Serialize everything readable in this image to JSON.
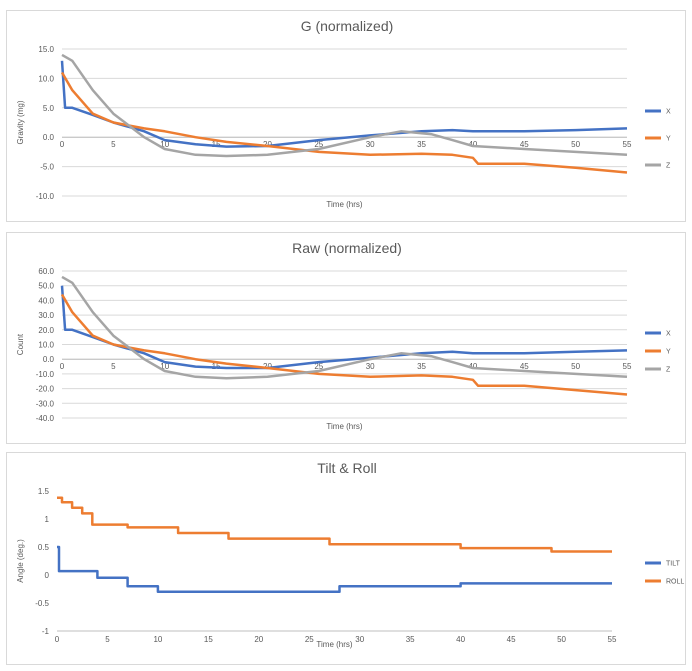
{
  "chart_data": [
    {
      "type": "line",
      "title": "G (normalized)",
      "xlabel": "Time (hrs)",
      "ylabel": "Gravity (mg)",
      "xlim": [
        0,
        55
      ],
      "ylim": [
        -10,
        15
      ],
      "xticks": [
        "0",
        "5",
        "10",
        "15",
        "20",
        "25",
        "30",
        "35",
        "40",
        "45",
        "50",
        "55"
      ],
      "yticks": [
        "15.0",
        "10.0",
        "5.0",
        "0.0",
        "-5.0",
        "-10.0"
      ],
      "grid": true,
      "legend": "right",
      "series": [
        {
          "name": "X",
          "color": "#4472C4",
          "x": [
            0,
            0.3,
            1,
            3,
            5,
            8,
            10,
            13,
            16,
            20,
            25,
            30,
            35,
            38,
            40,
            45,
            50,
            55
          ],
          "y": [
            13,
            5,
            5,
            3.8,
            2.5,
            1,
            -0.5,
            -1.2,
            -1.6,
            -1.5,
            -0.5,
            0.3,
            1,
            1.2,
            1,
            1,
            1.2,
            1.5
          ]
        },
        {
          "name": "Y",
          "color": "#ED7D31",
          "x": [
            0,
            1,
            3,
            5,
            8,
            10,
            13,
            16,
            20,
            25,
            30,
            35,
            38,
            40,
            40.5,
            45,
            50,
            55
          ],
          "y": [
            11,
            8,
            4,
            2.5,
            1.5,
            1,
            0,
            -0.8,
            -1.5,
            -2.5,
            -3,
            -2.8,
            -3,
            -3.5,
            -4.5,
            -4.5,
            -5.2,
            -6
          ]
        },
        {
          "name": "Z",
          "color": "#A5A5A5",
          "x": [
            0,
            1,
            3,
            5,
            8,
            10,
            13,
            16,
            20,
            25,
            30,
            33,
            36,
            38,
            40,
            45,
            50,
            55
          ],
          "y": [
            14,
            13,
            8,
            4,
            0,
            -2,
            -3,
            -3.2,
            -3,
            -2,
            0,
            1,
            0.5,
            -0.5,
            -1.5,
            -2,
            -2.5,
            -3
          ]
        }
      ]
    },
    {
      "type": "line",
      "title": "Raw (normalized)",
      "xlabel": "Time (hrs)",
      "ylabel": "Count",
      "xlim": [
        0,
        55
      ],
      "ylim": [
        -40,
        60
      ],
      "xticks": [
        "0",
        "5",
        "10",
        "15",
        "20",
        "25",
        "30",
        "35",
        "40",
        "45",
        "50",
        "55"
      ],
      "yticks": [
        "60.0",
        "50.0",
        "40.0",
        "30.0",
        "20.0",
        "10.0",
        "0.0",
        "-10.0",
        "-20.0",
        "-30.0",
        "-40.0"
      ],
      "grid": true,
      "legend": "right",
      "series": [
        {
          "name": "X",
          "color": "#4472C4",
          "x": [
            0,
            0.3,
            1,
            3,
            5,
            8,
            10,
            13,
            16,
            20,
            25,
            30,
            35,
            38,
            40,
            45,
            50,
            55
          ],
          "y": [
            50,
            20,
            20,
            15,
            10,
            4,
            -2,
            -5,
            -6,
            -6,
            -2,
            1,
            4,
            5,
            4,
            4,
            5,
            6
          ]
        },
        {
          "name": "Y",
          "color": "#ED7D31",
          "x": [
            0,
            1,
            3,
            5,
            8,
            10,
            13,
            16,
            20,
            25,
            30,
            35,
            38,
            40,
            40.5,
            45,
            50,
            55
          ],
          "y": [
            44,
            32,
            16,
            10,
            6,
            4,
            0,
            -3,
            -6,
            -10,
            -12,
            -11,
            -12,
            -14,
            -18,
            -18,
            -21,
            -24
          ]
        },
        {
          "name": "Z",
          "color": "#A5A5A5",
          "x": [
            0,
            1,
            3,
            5,
            8,
            10,
            13,
            16,
            20,
            25,
            30,
            33,
            36,
            38,
            40,
            45,
            50,
            55
          ],
          "y": [
            56,
            52,
            32,
            16,
            0,
            -8,
            -12,
            -13,
            -12,
            -8,
            0,
            4,
            2,
            -2,
            -6,
            -8,
            -10,
            -12
          ]
        }
      ]
    },
    {
      "type": "line",
      "title": "Tilt & Roll",
      "xlabel": "Time (hrs)",
      "ylabel": "Angle (deg.)",
      "xlim": [
        0,
        55
      ],
      "ylim": [
        -1,
        1.5
      ],
      "xticks": [
        "0",
        "5",
        "10",
        "15",
        "20",
        "25",
        "30",
        "35",
        "40",
        "45",
        "50",
        "55"
      ],
      "yticks": [
        "1.5",
        "1",
        "0.5",
        "0",
        "-0.5",
        "-1"
      ],
      "grid": false,
      "legend": "right",
      "series": [
        {
          "name": "TILT",
          "color": "#4472C4",
          "x": [
            0,
            0.2,
            0.2,
            4,
            4,
            7,
            7,
            10,
            10,
            28,
            28,
            40,
            40,
            55
          ],
          "y": [
            0.5,
            0.5,
            0.07,
            0.07,
            -0.05,
            -0.05,
            -0.2,
            -0.2,
            -0.3,
            -0.3,
            -0.2,
            -0.2,
            -0.15,
            -0.15
          ]
        },
        {
          "name": "ROLL",
          "color": "#ED7D31",
          "x": [
            0,
            0.5,
            0.5,
            1.5,
            1.5,
            2.5,
            2.5,
            3.5,
            3.5,
            7,
            7,
            12,
            12,
            17,
            17,
            27,
            27,
            40,
            40,
            49,
            49,
            55
          ],
          "y": [
            1.38,
            1.38,
            1.3,
            1.3,
            1.2,
            1.2,
            1.1,
            1.1,
            0.9,
            0.9,
            0.85,
            0.85,
            0.75,
            0.75,
            0.65,
            0.65,
            0.55,
            0.55,
            0.48,
            0.48,
            0.42,
            0.42
          ]
        }
      ]
    }
  ]
}
